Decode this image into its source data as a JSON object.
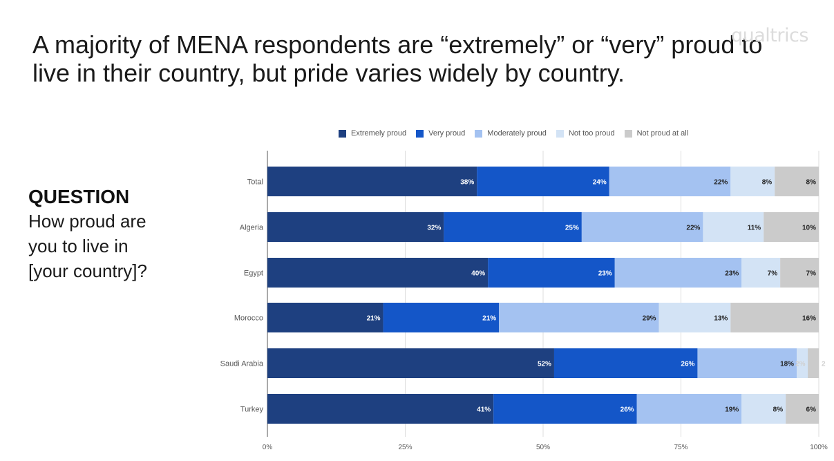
{
  "title_lines": [
    "A majority of MENA respondents are “extremely” or “very” proud to",
    "live in their country, but pride varies widely by country."
  ],
  "logo_text": "qualtrics",
  "question": {
    "heading": "QUESTION",
    "lines": [
      "How proud are",
      "you to live in",
      "[your country]?"
    ]
  },
  "colors": {
    "extremely": "#1e4080",
    "very": "#1456c8",
    "moderately": "#a4c2f1",
    "not_too": "#d3e3f5",
    "not_at_all": "#cbcbcb"
  },
  "chart_data": {
    "type": "bar",
    "orientation": "horizontal",
    "stacked": true,
    "categories": [
      "Total",
      "Algeria",
      "Egypt",
      "Morocco",
      "Saudi Arabia",
      "Turkey"
    ],
    "series": [
      {
        "name": "Extremely proud",
        "values": [
          38,
          32,
          40,
          21,
          52,
          41
        ],
        "labels": [
          "38%",
          "32%",
          "40%",
          "21%",
          "52%",
          "41%"
        ]
      },
      {
        "name": "Very proud",
        "values": [
          24,
          25,
          23,
          21,
          26,
          26
        ],
        "labels": [
          "24%",
          "25%",
          "23%",
          "21%",
          "26%",
          "26%"
        ]
      },
      {
        "name": "Moderately proud",
        "values": [
          22,
          22,
          23,
          29,
          18,
          19
        ],
        "labels": [
          "22%",
          "22%",
          "23%",
          "29%",
          "18%",
          "19%"
        ]
      },
      {
        "name": "Not too proud",
        "values": [
          8,
          11,
          7,
          13,
          2,
          8
        ],
        "labels": [
          "8%",
          "11%",
          "7%",
          "13%",
          "2%",
          "8%"
        ]
      },
      {
        "name": "Not proud at all",
        "values": [
          8,
          10,
          7,
          16,
          2,
          6
        ],
        "labels": [
          "8%",
          "10%",
          "7%",
          "16%",
          "2",
          "6%"
        ]
      }
    ],
    "x_ticks": [
      "0%",
      "25%",
      "50%",
      "75%",
      "100%"
    ],
    "xlim": [
      0,
      100
    ],
    "grid": true,
    "legend": "top"
  }
}
